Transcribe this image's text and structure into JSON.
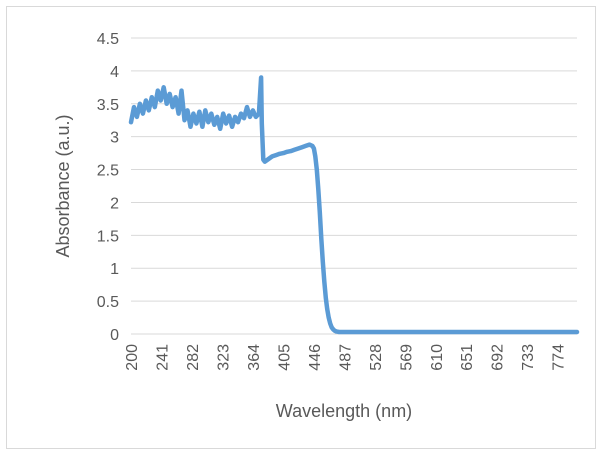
{
  "chart_data": {
    "type": "line",
    "title": "",
    "xlabel": "Wavelength (nm)",
    "ylabel": "Absorbance (a.u.)",
    "ylim": [
      0,
      4.5
    ],
    "xlim": [
      200,
      800
    ],
    "y_ticks": [
      "0",
      "0.5",
      "1",
      "1.5",
      "2",
      "2.5",
      "3",
      "3.5",
      "4",
      "4.5"
    ],
    "x_ticks": [
      "200",
      "241",
      "282",
      "323",
      "364",
      "405",
      "446",
      "487",
      "528",
      "569",
      "610",
      "651",
      "692",
      "733",
      "774"
    ],
    "grid": "horizontal",
    "legend": "none",
    "series_color": "#5b9bd5",
    "series": [
      {
        "x": [
          200,
          204,
          208,
          212,
          216,
          220,
          224,
          228,
          232,
          236,
          240,
          244,
          248,
          252,
          256,
          260,
          264,
          268,
          272,
          276,
          280,
          284,
          288,
          292,
          296,
          300,
          304,
          308,
          312,
          316,
          320,
          324,
          328,
          332,
          336,
          340,
          344,
          348,
          352,
          356,
          360,
          364,
          368,
          372,
          375,
          376,
          378,
          380,
          385,
          390,
          395,
          400,
          405,
          410,
          415,
          420,
          425,
          430,
          435,
          440,
          444,
          446,
          448,
          450,
          452,
          454,
          456,
          458,
          460,
          462,
          464,
          466,
          468,
          470,
          472,
          474,
          476,
          478,
          480,
          484,
          488,
          492,
          496,
          500,
          510,
          530,
          560,
          600,
          650,
          700,
          750,
          800
        ],
        "values": [
          3.22,
          3.45,
          3.3,
          3.5,
          3.35,
          3.55,
          3.4,
          3.6,
          3.45,
          3.7,
          3.55,
          3.75,
          3.5,
          3.65,
          3.45,
          3.6,
          3.35,
          3.7,
          3.25,
          3.4,
          3.15,
          3.35,
          3.2,
          3.38,
          3.15,
          3.4,
          3.22,
          3.35,
          3.18,
          3.3,
          3.12,
          3.35,
          3.2,
          3.32,
          3.15,
          3.3,
          3.22,
          3.35,
          3.28,
          3.45,
          3.3,
          3.4,
          3.3,
          3.35,
          3.9,
          3.2,
          2.65,
          2.62,
          2.66,
          2.7,
          2.72,
          2.74,
          2.75,
          2.77,
          2.78,
          2.8,
          2.82,
          2.84,
          2.86,
          2.88,
          2.86,
          2.82,
          2.7,
          2.5,
          2.2,
          1.85,
          1.45,
          1.1,
          0.8,
          0.55,
          0.38,
          0.25,
          0.16,
          0.1,
          0.07,
          0.05,
          0.04,
          0.035,
          0.03,
          0.03,
          0.03,
          0.03,
          0.03,
          0.03,
          0.03,
          0.03,
          0.03,
          0.03,
          0.03,
          0.03,
          0.03,
          0.03
        ]
      }
    ]
  }
}
